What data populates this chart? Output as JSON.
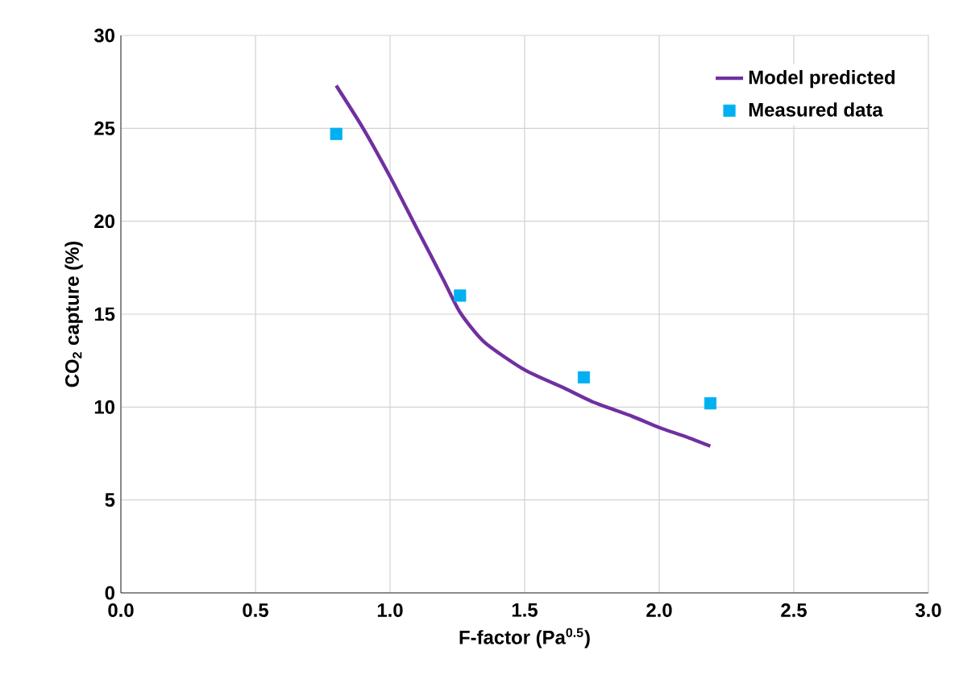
{
  "chart_data": {
    "type": "line",
    "xlabel": "F-factor (Pa$^{0.5}$)",
    "ylabel": "CO$_{2}$ capture (%)",
    "xlim": [
      0,
      3
    ],
    "xticks": [
      {
        "value": 0,
        "label": "0.0"
      },
      {
        "value": 0.5,
        "label": "0.5"
      },
      {
        "value": 1,
        "label": "1.0"
      },
      {
        "value": 1.5,
        "label": "1.5"
      },
      {
        "value": 2,
        "label": "2.0"
      },
      {
        "value": 2.5,
        "label": "2.5"
      },
      {
        "value": 3,
        "label": "3.0"
      }
    ],
    "ylim": [
      0,
      30
    ],
    "yticks": [
      0,
      5,
      10,
      15,
      20,
      25,
      30
    ],
    "grid": true,
    "legend": "top right",
    "series": [
      {
        "name": "Model predicted",
        "color": "#7030a0",
        "marker": "none",
        "line_style": "solid",
        "x": [
          0.8,
          0.9,
          1.0,
          1.1,
          1.2,
          1.26,
          1.35,
          1.5,
          1.65,
          1.75,
          1.9,
          2.0,
          2.1,
          2.19
        ],
        "values": [
          27.3,
          25.0,
          22.4,
          19.6,
          16.8,
          15.1,
          13.5,
          12.0,
          11.0,
          10.3,
          9.5,
          8.9,
          8.4,
          7.9
        ]
      },
      {
        "name": "Measured data",
        "type": "scatter",
        "color": "#00b0f0",
        "marker": "square",
        "x": [
          0.8,
          1.26,
          1.72,
          2.19
        ],
        "values": [
          24.7,
          16.0,
          11.6,
          10.2
        ]
      }
    ]
  }
}
